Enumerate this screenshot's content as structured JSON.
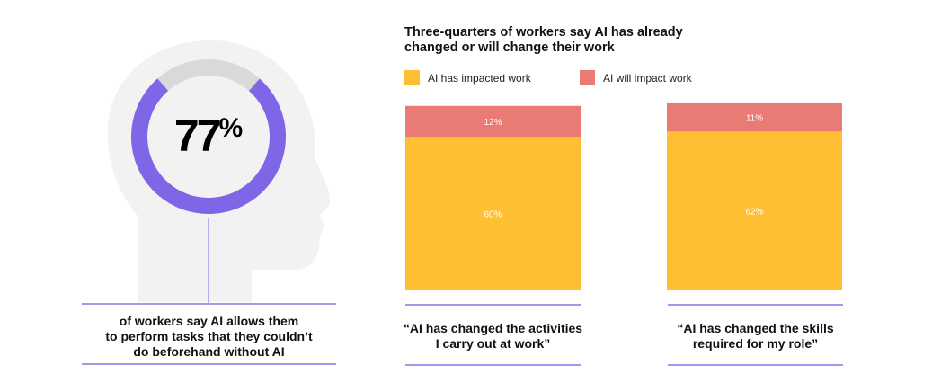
{
  "stat": {
    "value": "77",
    "unit": "%",
    "fraction": 0.77,
    "caption": [
      "of workers say AI allows them",
      "to perform tasks that they couldn’t",
      "do beforehand without AI"
    ]
  },
  "colors": {
    "impacted": "#ffbf33",
    "will_impact": "#e97b74",
    "ring": "#7f66e6",
    "ring_bg": "#d9d9d9",
    "head": "#f2f2f2",
    "rule": "#a996ea"
  },
  "chart_data": {
    "type": "bar",
    "stacked": true,
    "title": "Three-quarters of workers say AI has already changed or will change their work",
    "title_lines": [
      "Three-quarters of workers say AI has already",
      "changed or will change their work"
    ],
    "legend": [
      "AI has impacted work",
      "AI will impact work"
    ],
    "legend_position": "top-left",
    "categories": [
      "“AI has changed the activities I carry out at work”",
      "“AI has changed the skills required for my role”"
    ],
    "category_lines": [
      [
        "“AI has changed the activities",
        "I carry out at work”"
      ],
      [
        "“AI has changed the skills",
        "required for my role”"
      ]
    ],
    "series": [
      {
        "name": "AI has impacted work",
        "values": [
          60,
          62
        ],
        "labels": [
          "60%",
          "62%"
        ]
      },
      {
        "name": "AI will impact work",
        "values": [
          12,
          11
        ],
        "labels": [
          "12%",
          "11%"
        ]
      }
    ],
    "ylim": [
      0,
      72
    ]
  }
}
